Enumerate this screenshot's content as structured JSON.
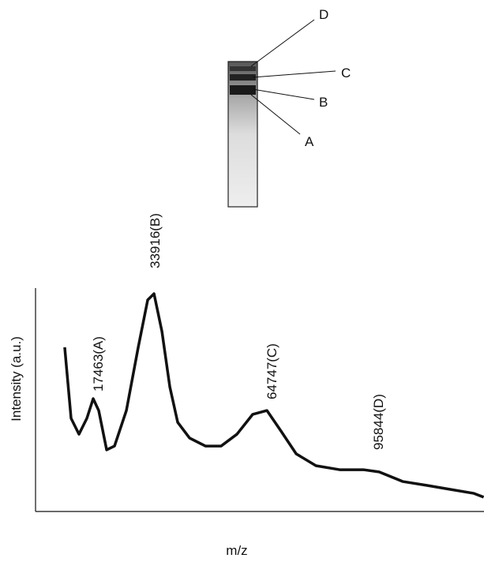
{
  "chart_data": {
    "type": "line",
    "x_label": "m/z",
    "y_label": "Intensity (a.u.)",
    "x": [
      9600,
      11370,
      13560,
      15750,
      17510,
      19040,
      21240,
      23430,
      26720,
      30010,
      32640,
      34390,
      36590,
      38780,
      40970,
      44260,
      48650,
      53030,
      57420,
      61800,
      65750,
      69480,
      73870,
      79350,
      85930,
      92510,
      96900,
      103480,
      110060,
      116630,
      123210,
      125900
    ],
    "values": [
      73.5,
      41.7,
      34.6,
      41.7,
      50.5,
      45.2,
      27.6,
      29.3,
      45.2,
      73.5,
      94.7,
      97.5,
      80.6,
      55.8,
      39.9,
      32.9,
      29.3,
      29.3,
      34.6,
      43.5,
      45.2,
      36.4,
      25.8,
      20.5,
      18.7,
      18.7,
      17.7,
      13.4,
      11.7,
      9.9,
      8.1,
      6.4
    ],
    "color": "#111111",
    "xlim": [
      1500,
      126000
    ],
    "ylim": [
      0,
      100
    ],
    "peak_labels": [
      "17463(A)",
      "33916(B)",
      "64747(C)",
      "95844(D)"
    ],
    "gel_labels": [
      "D",
      "C",
      "B",
      "A"
    ]
  }
}
